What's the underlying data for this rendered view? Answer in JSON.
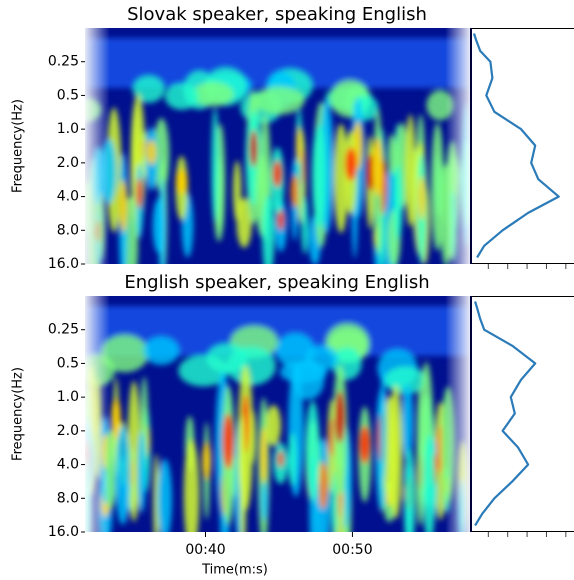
{
  "chart_data": [
    {
      "type": "scalogram",
      "title": "Slovak speaker, speaking English",
      "ylabel": "Frequency(Hz)",
      "ylim": [
        16,
        0.125
      ],
      "log_scale": true,
      "yticks": [
        {
          "value": 16,
          "label": "16.0"
        },
        {
          "value": 8,
          "label": "8.0"
        },
        {
          "value": 4,
          "label": "4.0"
        },
        {
          "value": 2,
          "label": "2.0"
        },
        {
          "value": 1,
          "label": "1.0"
        },
        0.5,
        0.25
      ],
      "xlim": [
        31.8,
        58.0
      ],
      "profile": {
        "color": "#2b7bb9",
        "xlim": [
          0,
          100
        ],
        "xticks": [
          16,
          35,
          54,
          73,
          92
        ],
        "freqs": [
          0.14,
          0.16,
          0.2,
          0.25,
          0.35,
          0.5,
          0.7,
          1.0,
          1.4,
          2.0,
          2.8,
          4.0,
          5.6,
          8.0,
          11,
          14
        ],
        "values": [
          2,
          4,
          8,
          18,
          20,
          14,
          22,
          48,
          62,
          58,
          65,
          85,
          55,
          30,
          12,
          5
        ]
      }
    },
    {
      "type": "scalogram",
      "title": "English speaker, speaking English",
      "ylabel": "Frequency(Hz)",
      "xlabel": "Time(m:s)",
      "ylim": [
        16,
        0.125
      ],
      "log_scale": true,
      "yticks": [
        {
          "value": 16,
          "label": "16.0"
        },
        {
          "value": 8,
          "label": "8.0"
        },
        {
          "value": 4,
          "label": "4.0"
        },
        {
          "value": 2,
          "label": "2.0"
        },
        {
          "value": 1,
          "label": "1.0"
        },
        0.5,
        0.25
      ],
      "xlim": [
        31.8,
        58.0
      ],
      "xticks": [
        {
          "value": 40,
          "label": "00:40"
        },
        {
          "value": 50,
          "label": "00:50"
        }
      ],
      "profile": {
        "color": "#2b7bb9",
        "xlim": [
          0,
          100
        ],
        "xticks": [
          16,
          35,
          54,
          73,
          92
        ],
        "freqs": [
          0.14,
          0.16,
          0.2,
          0.25,
          0.35,
          0.5,
          0.7,
          1.0,
          1.4,
          2.0,
          2.8,
          4.0,
          5.6,
          8.0,
          11,
          14
        ],
        "values": [
          3,
          5,
          8,
          12,
          40,
          62,
          48,
          38,
          42,
          30,
          45,
          55,
          40,
          22,
          10,
          3
        ]
      }
    }
  ]
}
